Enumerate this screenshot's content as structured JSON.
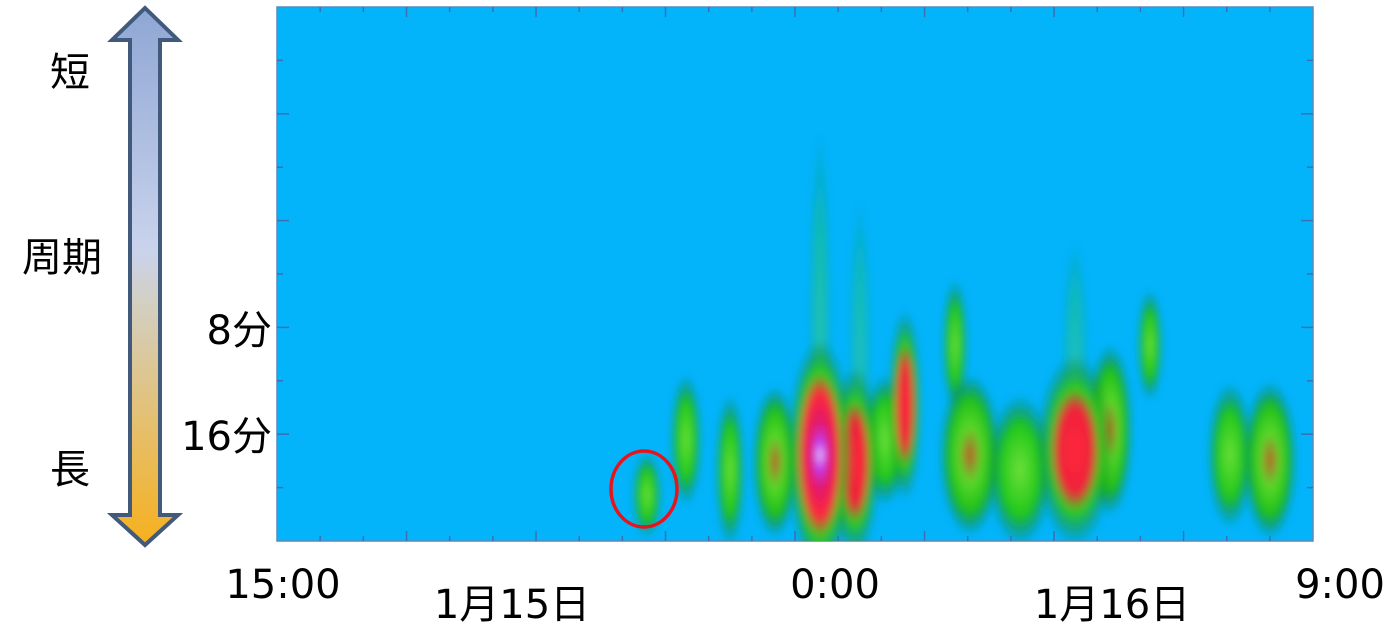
{
  "arrow_labels": {
    "top": "短",
    "middle": "周期",
    "bottom": "長"
  },
  "y_labels": [
    "8分",
    "16分"
  ],
  "x_labels": [
    "15:00",
    "0:00",
    "9:00"
  ],
  "date_labels": [
    "1月15日",
    "1月16日"
  ]
}
